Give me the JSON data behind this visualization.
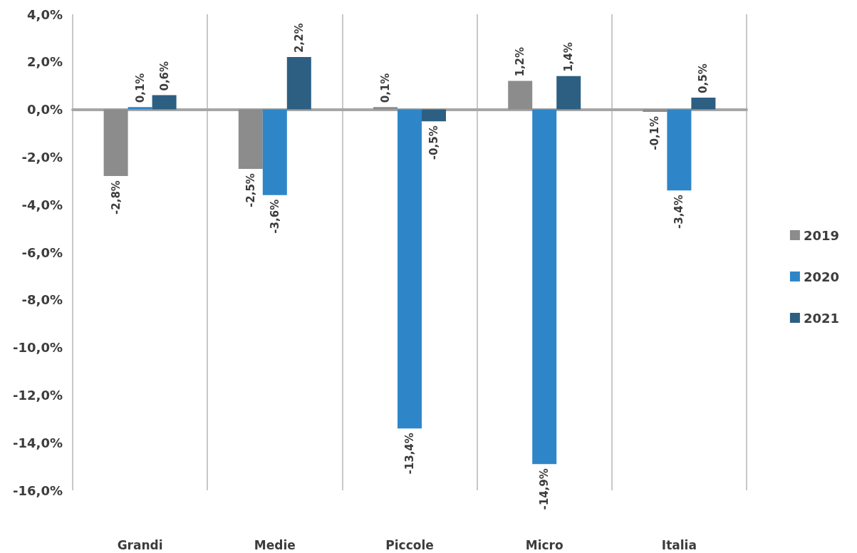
{
  "chart_data": {
    "type": "bar",
    "categories": [
      "Grandi",
      "Medie",
      "Piccole",
      "Micro",
      "Italia"
    ],
    "series": [
      {
        "name": "2019",
        "color": "#8c8c8c",
        "values": [
          -2.8,
          -2.5,
          0.1,
          1.2,
          -0.1
        ]
      },
      {
        "name": "2020",
        "color": "#2e86c8",
        "values": [
          0.1,
          -3.6,
          -13.4,
          -14.9,
          -3.4
        ]
      },
      {
        "name": "2021",
        "color": "#2c5f82",
        "values": [
          0.6,
          2.2,
          -0.5,
          1.4,
          0.5
        ]
      }
    ],
    "ylim": [
      -16,
      4
    ],
    "yticks": [
      {
        "value": -16,
        "label": "-16,0%"
      },
      {
        "value": -14,
        "label": "-14,0%"
      },
      {
        "value": -12,
        "label": "-12,0%"
      },
      {
        "value": -10,
        "label": "-10,0%"
      },
      {
        "value": -8,
        "label": "-8,0%"
      },
      {
        "value": -6,
        "label": "-6,0%"
      },
      {
        "value": -4,
        "label": "-4,0%"
      },
      {
        "value": -2,
        "label": "-2,0%"
      },
      {
        "value": 0,
        "label": "0,0%"
      },
      {
        "value": 2,
        "label": "2,0%"
      },
      {
        "value": 4,
        "label": "4,0%"
      }
    ],
    "value_labels": [
      [
        "-2,8%",
        "-2,5%",
        "0,1%",
        "1,2%",
        "-0,1%"
      ],
      [
        "0,1%",
        "-3,6%",
        "-13,4%",
        "-14,9%",
        "-3,4%"
      ],
      [
        "0,6%",
        "2,2%",
        "-0,5%",
        "1,4%",
        "0,5%"
      ]
    ],
    "grid": "x",
    "legend": "right"
  }
}
